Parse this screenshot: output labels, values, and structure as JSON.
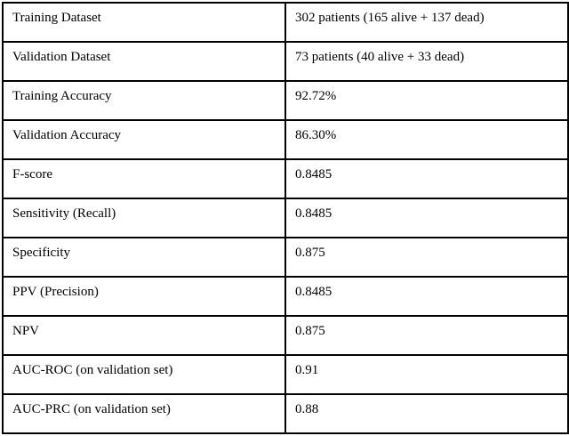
{
  "table": {
    "columns": [
      "metric",
      "value"
    ],
    "rows": [
      {
        "label": "Training Dataset",
        "value": "302 patients (165 alive + 137 dead)"
      },
      {
        "label": "Validation Dataset",
        "value": "73 patients (40 alive + 33 dead)"
      },
      {
        "label": "Training Accuracy",
        "value": "92.72%"
      },
      {
        "label": "Validation Accuracy",
        "value": "86.30%"
      },
      {
        "label": "F-score",
        "value": "0.8485"
      },
      {
        "label": "Sensitivity (Recall)",
        "value": "0.8485"
      },
      {
        "label": "Specificity",
        "value": "0.875"
      },
      {
        "label": "PPV (Precision)",
        "value": "0.8485"
      },
      {
        "label": "NPV",
        "value": "0.875"
      },
      {
        "label": "AUC-ROC (on validation set)",
        "value": "0.91"
      },
      {
        "label": "AUC-PRC (on validation set)",
        "value": "0.88"
      }
    ],
    "colors": {
      "border": "#000000",
      "text": "#000000",
      "background": "#ffffff"
    }
  }
}
